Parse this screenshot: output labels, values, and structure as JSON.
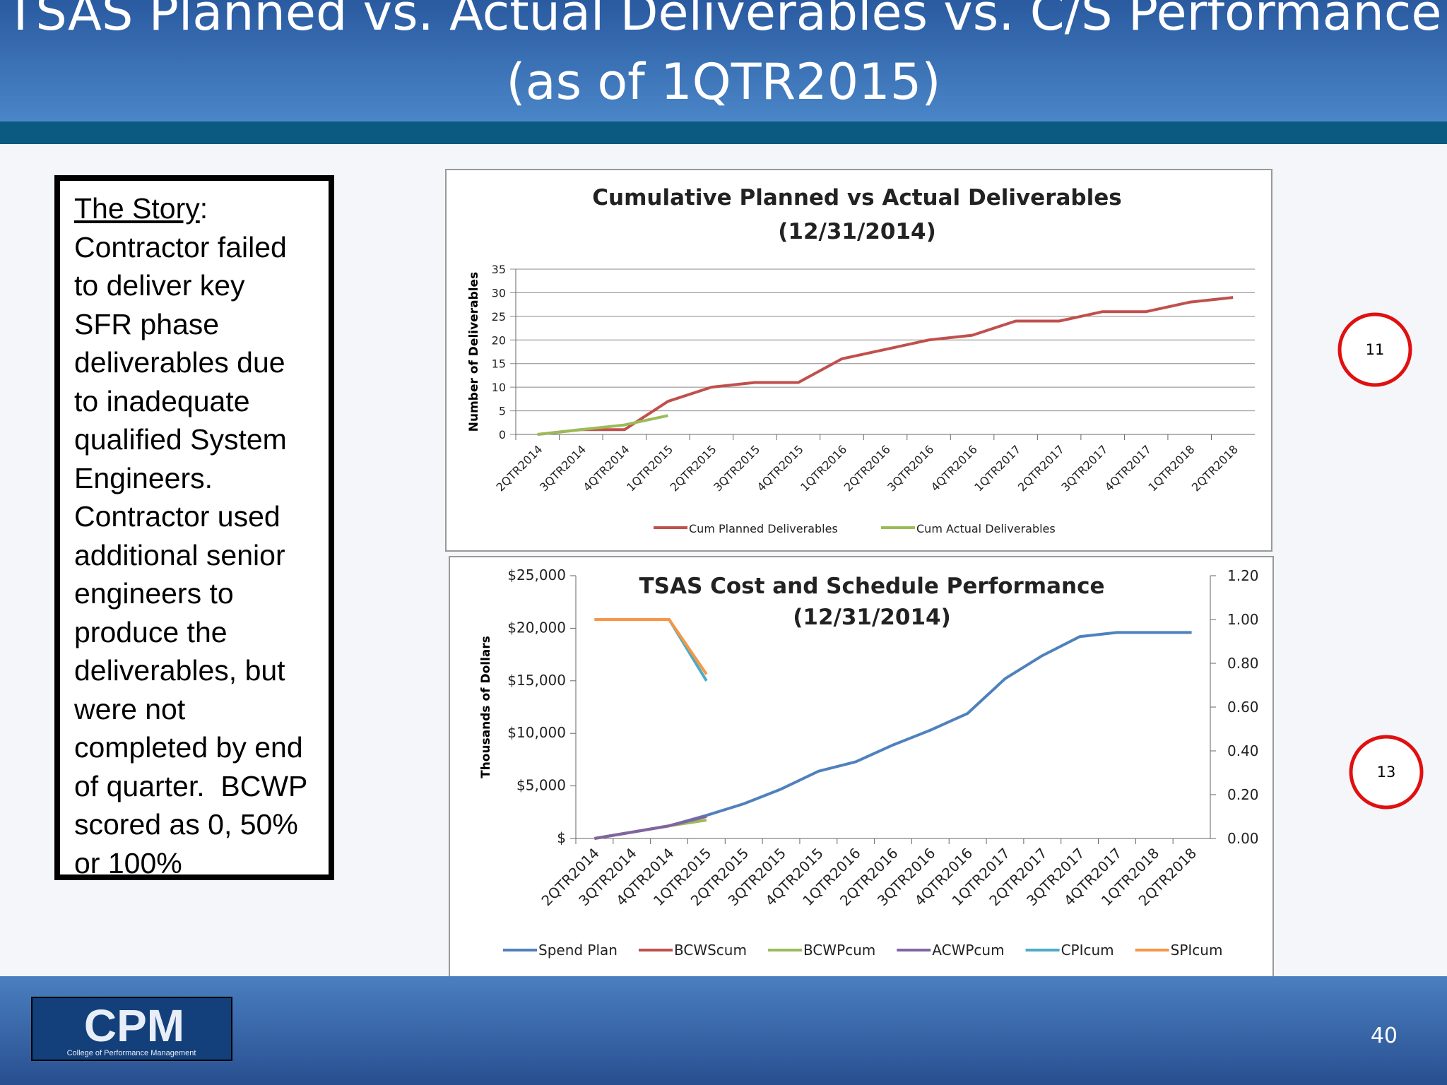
{
  "header": {
    "title_lines": [
      "TSAS Planned vs. Actual Deliverables vs. C/S Performance",
      "(as of 1QTR2015)"
    ]
  },
  "story": {
    "heading": "The Story",
    "colon": ":",
    "lines": [
      "Contractor failed",
      "to deliver key",
      "SFR phase",
      "deliverables due",
      "to inadequate",
      "qualified System",
      "Engineers.",
      "Contractor used",
      "additional senior",
      "engineers to",
      "produce the",
      "deliverables, but",
      "were not",
      "completed by end",
      "of quarter.  BCWP",
      "scored as 0, 50%",
      "or 100%"
    ]
  },
  "markers": [
    "11",
    "13"
  ],
  "logo": {
    "name": "CPM",
    "caption": "College of Performance Management"
  },
  "page_number": "40",
  "chart_data": [
    {
      "type": "line",
      "title": "Cumulative Planned vs Actual Deliverables",
      "subtitle": "(12/31/2014)",
      "ylabel": "Number of Deliverables",
      "categories": [
        "2QTR2014",
        "3QTR2014",
        "4QTR2014",
        "1QTR2015",
        "2QTR2015",
        "3QTR2015",
        "4QTR2015",
        "1QTR2016",
        "2QTR2016",
        "3QTR2016",
        "4QTR2016",
        "1QTR2017",
        "2QTR2017",
        "3QTR2017",
        "4QTR2017",
        "1QTR2018",
        "2QTR2018"
      ],
      "series": [
        {
          "name": "Cum Planned Deliverables",
          "color": "#c0504d",
          "values": [
            0,
            1,
            1,
            7,
            10,
            11,
            11,
            16,
            18,
            20,
            21,
            24,
            24,
            26,
            26,
            28,
            29
          ]
        },
        {
          "name": "Cum Actual Deliverables",
          "color": "#9bbb59",
          "values": [
            0,
            1,
            2,
            4,
            null,
            null,
            null,
            null,
            null,
            null,
            null,
            null,
            null,
            null,
            null,
            null,
            null
          ]
        }
      ],
      "ylim": [
        0,
        35
      ],
      "yticks": [
        0,
        5,
        10,
        15,
        20,
        25,
        30,
        35
      ],
      "grid": true
    },
    {
      "type": "line",
      "title": "TSAS Cost and Schedule Performance",
      "subtitle": "(12/31/2014)",
      "ylabel": "Thousands  of Dollars",
      "categories": [
        "2QTR2014",
        "3QTR2014",
        "4QTR2014",
        "1QTR2015",
        "2QTR2015",
        "3QTR2015",
        "4QTR2015",
        "1QTR2016",
        "2QTR2016",
        "3QTR2016",
        "4QTR2016",
        "1QTR2017",
        "2QTR2017",
        "3QTR2017",
        "4QTR2017",
        "1QTR2018",
        "2QTR2018"
      ],
      "series": [
        {
          "name": "Spend Plan",
          "color": "#4f81bd",
          "values": [
            0,
            600,
            1200,
            2200,
            3300,
            4700,
            6400,
            7300,
            8900,
            10300,
            11900,
            15200,
            17400,
            19200,
            19600,
            19600,
            19600
          ]
        },
        {
          "name": "BCWScum",
          "color": "#c0504d",
          "values": [
            0,
            600,
            1200,
            2100,
            null,
            null,
            null,
            null,
            null,
            null,
            null,
            null,
            null,
            null,
            null,
            null,
            null
          ]
        },
        {
          "name": "BCWPcum",
          "color": "#9bbb59",
          "values": [
            0,
            600,
            1200,
            1750,
            null,
            null,
            null,
            null,
            null,
            null,
            null,
            null,
            null,
            null,
            null,
            null,
            null
          ]
        },
        {
          "name": "ACWPcum",
          "color": "#8064a2",
          "values": [
            0,
            600,
            1200,
            2100,
            null,
            null,
            null,
            null,
            null,
            null,
            null,
            null,
            null,
            null,
            null,
            null,
            null
          ]
        },
        {
          "name": "CPIcum",
          "color": "#4bacc6",
          "axis": "y2",
          "values": [
            1.0,
            1.0,
            1.0,
            0.72,
            null,
            null,
            null,
            null,
            null,
            null,
            null,
            null,
            null,
            null,
            null,
            null,
            null
          ]
        },
        {
          "name": "SPIcum",
          "color": "#f79646",
          "axis": "y2",
          "values": [
            1.0,
            1.0,
            1.0,
            0.75,
            null,
            null,
            null,
            null,
            null,
            null,
            null,
            null,
            null,
            null,
            null,
            null,
            null
          ]
        }
      ],
      "ylim": [
        0,
        25000
      ],
      "yticks": [
        {
          "value": 0,
          "label": "$"
        },
        {
          "value": 5000,
          "label": "$5,000"
        },
        {
          "value": 10000,
          "label": "$10,000"
        },
        {
          "value": 15000,
          "label": "$15,000"
        },
        {
          "value": 20000,
          "label": "$20,000"
        },
        {
          "value": 25000,
          "label": "$25,000"
        }
      ],
      "y2lim": [
        0,
        1.2
      ],
      "y2ticks": [
        {
          "value": 0,
          "label": "0.00"
        },
        {
          "value": 0.2,
          "label": "0.20"
        },
        {
          "value": 0.4,
          "label": "0.40"
        },
        {
          "value": 0.6,
          "label": "0.60"
        },
        {
          "value": 0.8,
          "label": "0.80"
        },
        {
          "value": 1,
          "label": "1.00"
        },
        {
          "value": 1.2,
          "label": "1.20"
        }
      ],
      "grid": false
    }
  ]
}
